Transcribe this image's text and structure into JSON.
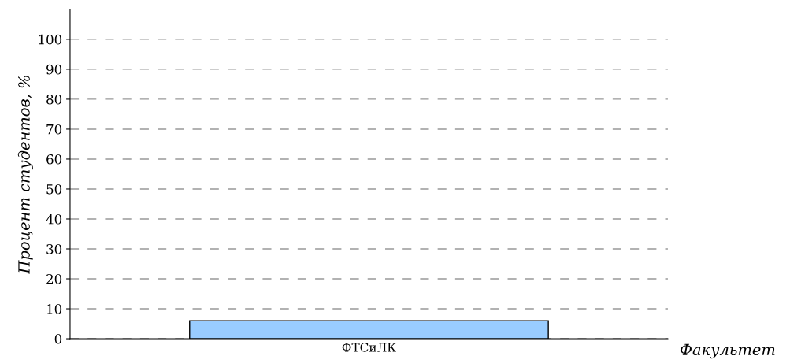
{
  "chart_data": {
    "type": "bar",
    "xlabel": "Факультет",
    "ylabel": "Процент студентов, %",
    "categories": [
      "ФТСиЛК"
    ],
    "values": [
      6
    ],
    "color": "#99ccff",
    "ylim": [
      0,
      110
    ],
    "yticks": [
      0,
      10,
      20,
      30,
      40,
      50,
      60,
      70,
      80,
      90,
      100
    ],
    "grid": "y"
  }
}
